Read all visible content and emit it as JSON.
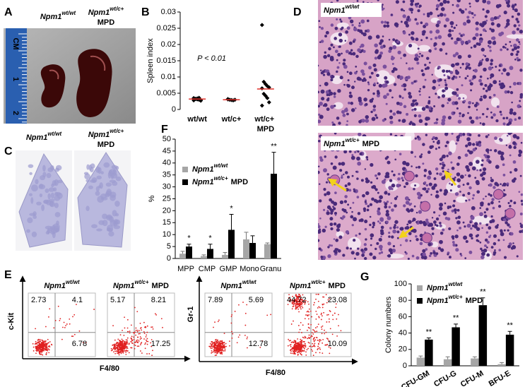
{
  "figure": {
    "A": {
      "letter": "A",
      "ruler_labels": [
        "CM",
        "1",
        "2"
      ],
      "labels": [
        {
          "text": "Npm1",
          "sup": "wt/wt"
        },
        {
          "text": "Npm1",
          "sup": "wt/c+",
          "after": "MPD"
        }
      ]
    },
    "B": {
      "letter": "B"
    },
    "C": {
      "letter": "C",
      "labels": [
        {
          "text": "Npm1",
          "sup": "wt/wt"
        },
        {
          "text": "Npm1",
          "sup": "wt/c+",
          "after": "MPD"
        }
      ]
    },
    "D": {
      "letter": "D",
      "labels": [
        {
          "text": "Npm1",
          "sup": "wt/wt"
        },
        {
          "text": "Npm1",
          "sup": "wt/c+",
          "after": "MPD"
        }
      ]
    },
    "E": {
      "letter": "E",
      "groups": [
        {
          "y_label": "c-Kit",
          "x_label": "F4/80",
          "plots": [
            {
              "title": {
                "text": "Npm1",
                "sup": "wt/wt"
              },
              "upper_left": 2.73,
              "upper_right": 4.1,
              "lower_right": 6.78
            },
            {
              "title": {
                "text": "Npm1",
                "sup": "wt/c+",
                "after": "MPD"
              },
              "upper_left": 5.17,
              "upper_right": 8.21,
              "lower_right": 17.25
            }
          ]
        },
        {
          "y_label": "Gr-1",
          "x_label": "F4/80",
          "plots": [
            {
              "title": {
                "text": "Npm1",
                "sup": "wt/wt"
              },
              "upper_left": 7.89,
              "upper_right": 5.69,
              "lower_right": 12.78
            },
            {
              "title": {
                "text": "Npm1",
                "sup": "wt/c+",
                "after": "MPD"
              },
              "upper_left": 44.72,
              "upper_right": 23.08,
              "lower_right": 10.09
            }
          ]
        }
      ]
    },
    "F": {
      "letter": "F"
    },
    "G": {
      "letter": "G"
    }
  },
  "chart_data": [
    {
      "type": "strip",
      "y_label": "Spleen index",
      "annotation": "P < 0.01",
      "categories": [
        "wt/wt",
        "wt/c+",
        "wt/c+ MPD"
      ],
      "values": [
        [
          0.0035,
          0.0033,
          0.0031,
          0.003,
          0.0029,
          0.0028,
          0.0032,
          0.0034,
          0.0036,
          0.0027
        ],
        [
          0.0031,
          0.003,
          0.0029,
          0.0028,
          0.003,
          0.0032
        ],
        [
          0.026,
          0.0085,
          0.0078,
          0.0072,
          0.0068,
          0.0065,
          0.0048,
          0.0042,
          0.0035,
          0.0022,
          0.0012
        ]
      ],
      "means": [
        0.0032,
        0.003,
        0.0063
      ],
      "color": "#000000",
      "mean_color": "#e0302a",
      "ylim": [
        0,
        0.03
      ],
      "yticks": [
        0,
        0.005,
        0.01,
        0.015,
        0.02,
        0.025,
        0.03
      ]
    },
    {
      "type": "bar",
      "y_label": "%",
      "categories": [
        "MPP",
        "CMP",
        "GMP",
        "Mono",
        "Granu"
      ],
      "series": [
        {
          "name": {
            "text": "Npm1",
            "sup": "wt/wt"
          },
          "color": "#a6a6a6",
          "values": [
            2,
            1,
            1.5,
            8,
            6
          ],
          "errors": [
            1,
            0.5,
            1,
            3,
            0.5
          ]
        },
        {
          "name": {
            "text": "Npm1",
            "sup": "wt/c+",
            "after": "MPD"
          },
          "color": "#000000",
          "values": [
            5,
            4,
            12,
            6.5,
            35.5
          ],
          "errors": [
            1,
            2,
            6.5,
            3,
            9
          ]
        }
      ],
      "significance": [
        "*",
        "*",
        "*",
        null,
        "**"
      ],
      "ylim": [
        0,
        50
      ],
      "yticks": [
        0,
        5,
        10,
        15,
        20,
        25,
        30,
        35,
        40,
        45,
        50
      ],
      "legend": "upper-left"
    },
    {
      "type": "bar",
      "y_label": "Colony numbers",
      "categories": [
        "CFU-GM",
        "CFU-G",
        "CFU-M",
        "BFU-E"
      ],
      "series": [
        {
          "name": {
            "text": "Npm1",
            "sup": "wt/wt"
          },
          "color": "#a6a6a6",
          "values": [
            10,
            8,
            9,
            2
          ],
          "errors": [
            2,
            3,
            2,
            2
          ]
        },
        {
          "name": {
            "text": "Npm1",
            "sup": "wt/c+",
            "after": "MPD"
          },
          "color": "#000000",
          "values": [
            32,
            47,
            74,
            38
          ],
          "errors": [
            2,
            4,
            9,
            4
          ]
        }
      ],
      "significance": [
        "**",
        "**",
        "**",
        "**"
      ],
      "ylim": [
        0,
        100
      ],
      "yticks": [
        0,
        20,
        40,
        60,
        80,
        100
      ],
      "legend": "upper-left"
    }
  ]
}
